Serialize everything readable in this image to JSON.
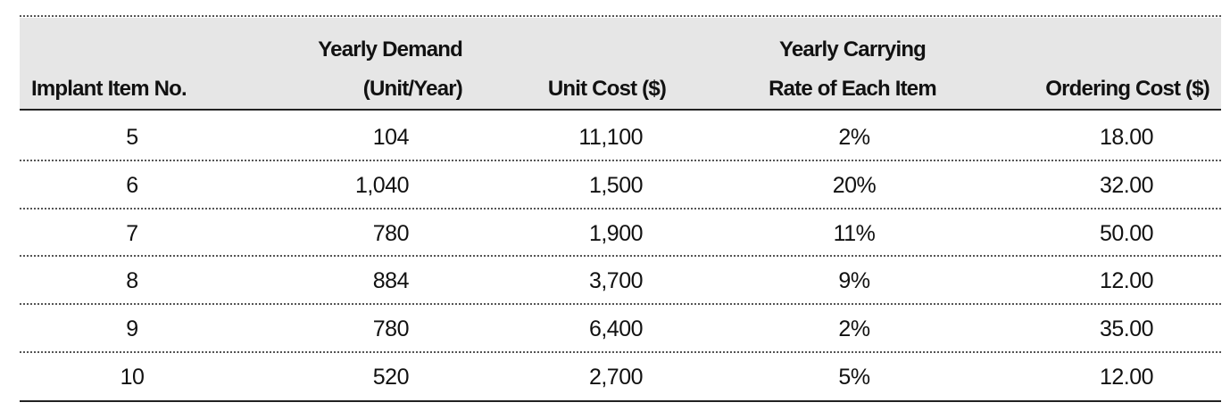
{
  "header": {
    "columns": [
      [
        "Implant Item No."
      ],
      [
        "Yearly Demand",
        "(Unit/Year)"
      ],
      [
        "Unit Cost ($)"
      ],
      [
        "Yearly Carrying",
        "Rate of Each Item"
      ],
      [
        "Ordering Cost ($)"
      ]
    ]
  },
  "table": {
    "rows": [
      [
        "5",
        "104",
        "11,100",
        "2%",
        "18.00"
      ],
      [
        "6",
        "1,040",
        "1,500",
        "20%",
        "32.00"
      ],
      [
        "7",
        "780",
        "1,900",
        "11%",
        "50.00"
      ],
      [
        "8",
        "884",
        "3,700",
        "9%",
        "12.00"
      ],
      [
        "9",
        "780",
        "6,400",
        "2%",
        "35.00"
      ],
      [
        "10",
        "520",
        "2,700",
        "5%",
        "12.00"
      ]
    ]
  }
}
